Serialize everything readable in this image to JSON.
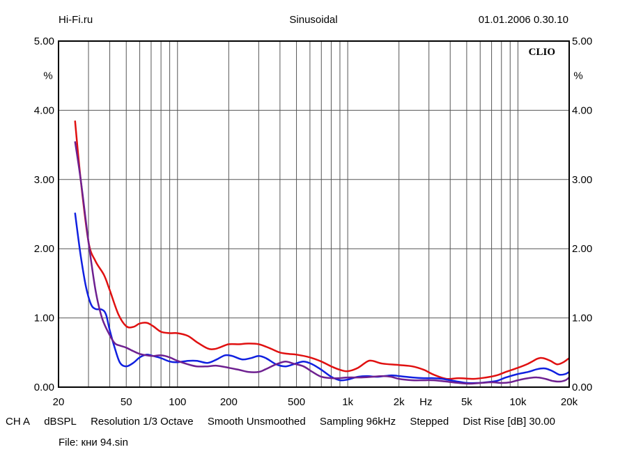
{
  "header": {
    "site": "Hi-Fi.ru",
    "mode": "Sinusoidal",
    "datetime": "01.01.2006 0.30.10"
  },
  "chart_data": {
    "type": "line",
    "brand": "CLIO",
    "x_scale": "log",
    "xlim": [
      20,
      20000
    ],
    "ylim": [
      0,
      5
    ],
    "y_unit": "%",
    "x_unit": "Hz",
    "x_ticks": [
      {
        "value": 20,
        "label": "20"
      },
      {
        "value": 50,
        "label": "50"
      },
      {
        "value": 100,
        "label": "100"
      },
      {
        "value": 200,
        "label": "200"
      },
      {
        "value": 500,
        "label": "500"
      },
      {
        "value": 1000,
        "label": "1k"
      },
      {
        "value": 2000,
        "label": "2k"
      },
      {
        "value": 5000,
        "label": "5k"
      },
      {
        "value": 10000,
        "label": "10k"
      },
      {
        "value": 20000,
        "label": "20k"
      }
    ],
    "y_ticks": [
      "0.00",
      "1.00",
      "2.00",
      "3.00",
      "4.00",
      "5.00"
    ],
    "grid": true,
    "series": [
      {
        "color": "#e01010",
        "points": [
          [
            25,
            3.85
          ],
          [
            27,
            3.0
          ],
          [
            30,
            2.1
          ],
          [
            33,
            1.82
          ],
          [
            37,
            1.62
          ],
          [
            40,
            1.4
          ],
          [
            45,
            1.05
          ],
          [
            50,
            0.88
          ],
          [
            55,
            0.87
          ],
          [
            60,
            0.92
          ],
          [
            66,
            0.93
          ],
          [
            72,
            0.88
          ],
          [
            80,
            0.8
          ],
          [
            90,
            0.78
          ],
          [
            100,
            0.78
          ],
          [
            115,
            0.74
          ],
          [
            130,
            0.65
          ],
          [
            150,
            0.56
          ],
          [
            165,
            0.55
          ],
          [
            180,
            0.58
          ],
          [
            200,
            0.62
          ],
          [
            230,
            0.62
          ],
          [
            260,
            0.63
          ],
          [
            300,
            0.62
          ],
          [
            350,
            0.56
          ],
          [
            400,
            0.5
          ],
          [
            450,
            0.48
          ],
          [
            500,
            0.47
          ],
          [
            600,
            0.43
          ],
          [
            700,
            0.37
          ],
          [
            800,
            0.3
          ],
          [
            900,
            0.25
          ],
          [
            1000,
            0.23
          ],
          [
            1150,
            0.28
          ],
          [
            1300,
            0.37
          ],
          [
            1400,
            0.38
          ],
          [
            1600,
            0.34
          ],
          [
            2000,
            0.32
          ],
          [
            2400,
            0.3
          ],
          [
            2800,
            0.25
          ],
          [
            3200,
            0.18
          ],
          [
            3800,
            0.12
          ],
          [
            4500,
            0.13
          ],
          [
            5500,
            0.12
          ],
          [
            6500,
            0.14
          ],
          [
            7500,
            0.17
          ],
          [
            8500,
            0.22
          ],
          [
            10000,
            0.28
          ],
          [
            11500,
            0.34
          ],
          [
            13000,
            0.41
          ],
          [
            14000,
            0.42
          ],
          [
            15500,
            0.38
          ],
          [
            17000,
            0.33
          ],
          [
            18500,
            0.36
          ],
          [
            20000,
            0.42
          ]
        ]
      },
      {
        "color": "#1020e0",
        "points": [
          [
            25,
            2.52
          ],
          [
            27,
            1.9
          ],
          [
            29,
            1.45
          ],
          [
            31,
            1.2
          ],
          [
            33,
            1.13
          ],
          [
            36,
            1.12
          ],
          [
            38,
            1.05
          ],
          [
            40,
            0.82
          ],
          [
            43,
            0.55
          ],
          [
            46,
            0.35
          ],
          [
            50,
            0.3
          ],
          [
            55,
            0.35
          ],
          [
            60,
            0.43
          ],
          [
            66,
            0.47
          ],
          [
            72,
            0.45
          ],
          [
            80,
            0.42
          ],
          [
            90,
            0.37
          ],
          [
            100,
            0.36
          ],
          [
            115,
            0.38
          ],
          [
            130,
            0.38
          ],
          [
            150,
            0.35
          ],
          [
            170,
            0.4
          ],
          [
            190,
            0.46
          ],
          [
            210,
            0.45
          ],
          [
            240,
            0.4
          ],
          [
            270,
            0.42
          ],
          [
            300,
            0.45
          ],
          [
            330,
            0.42
          ],
          [
            380,
            0.33
          ],
          [
            430,
            0.3
          ],
          [
            480,
            0.33
          ],
          [
            550,
            0.37
          ],
          [
            620,
            0.33
          ],
          [
            700,
            0.25
          ],
          [
            800,
            0.15
          ],
          [
            900,
            0.1
          ],
          [
            1000,
            0.11
          ],
          [
            1150,
            0.15
          ],
          [
            1300,
            0.16
          ],
          [
            1500,
            0.15
          ],
          [
            1800,
            0.17
          ],
          [
            2000,
            0.16
          ],
          [
            2400,
            0.14
          ],
          [
            2800,
            0.13
          ],
          [
            3200,
            0.13
          ],
          [
            3600,
            0.12
          ],
          [
            4200,
            0.09
          ],
          [
            5000,
            0.06
          ],
          [
            5800,
            0.06
          ],
          [
            6500,
            0.07
          ],
          [
            7500,
            0.09
          ],
          [
            8500,
            0.14
          ],
          [
            10000,
            0.19
          ],
          [
            11500,
            0.22
          ],
          [
            13000,
            0.26
          ],
          [
            14500,
            0.27
          ],
          [
            16000,
            0.23
          ],
          [
            17500,
            0.18
          ],
          [
            19000,
            0.19
          ],
          [
            20000,
            0.22
          ]
        ]
      },
      {
        "color": "#6e2090",
        "points": [
          [
            25,
            3.55
          ],
          [
            27,
            3.0
          ],
          [
            30,
            2.1
          ],
          [
            33,
            1.4
          ],
          [
            36,
            1.0
          ],
          [
            40,
            0.75
          ],
          [
            43,
            0.63
          ],
          [
            46,
            0.6
          ],
          [
            50,
            0.57
          ],
          [
            55,
            0.52
          ],
          [
            60,
            0.48
          ],
          [
            66,
            0.46
          ],
          [
            72,
            0.45
          ],
          [
            80,
            0.46
          ],
          [
            90,
            0.43
          ],
          [
            100,
            0.38
          ],
          [
            115,
            0.33
          ],
          [
            130,
            0.3
          ],
          [
            150,
            0.3
          ],
          [
            170,
            0.31
          ],
          [
            200,
            0.28
          ],
          [
            230,
            0.25
          ],
          [
            260,
            0.22
          ],
          [
            300,
            0.22
          ],
          [
            330,
            0.26
          ],
          [
            380,
            0.33
          ],
          [
            430,
            0.37
          ],
          [
            480,
            0.34
          ],
          [
            550,
            0.3
          ],
          [
            620,
            0.22
          ],
          [
            700,
            0.15
          ],
          [
            800,
            0.13
          ],
          [
            900,
            0.13
          ],
          [
            1000,
            0.14
          ],
          [
            1200,
            0.14
          ],
          [
            1400,
            0.15
          ],
          [
            1600,
            0.16
          ],
          [
            1800,
            0.15
          ],
          [
            2000,
            0.12
          ],
          [
            2400,
            0.1
          ],
          [
            2800,
            0.1
          ],
          [
            3200,
            0.1
          ],
          [
            3800,
            0.08
          ],
          [
            4500,
            0.06
          ],
          [
            5200,
            0.05
          ],
          [
            6000,
            0.06
          ],
          [
            7000,
            0.07
          ],
          [
            8000,
            0.06
          ],
          [
            9000,
            0.07
          ],
          [
            10000,
            0.1
          ],
          [
            11500,
            0.13
          ],
          [
            13000,
            0.14
          ],
          [
            14500,
            0.12
          ],
          [
            16000,
            0.09
          ],
          [
            17500,
            0.08
          ],
          [
            19000,
            0.1
          ],
          [
            20000,
            0.14
          ]
        ]
      }
    ]
  },
  "footer": {
    "channel": "CH A",
    "unit": "dBSPL",
    "resolution": "Resolution 1/3 Octave",
    "smoothing": "Smooth Unsmoothed",
    "sampling": "Sampling 96kHz",
    "stepping": "Stepped",
    "dist_rise": "Dist Rise [dB] 30.00",
    "file": "File: кни 94.sin"
  }
}
